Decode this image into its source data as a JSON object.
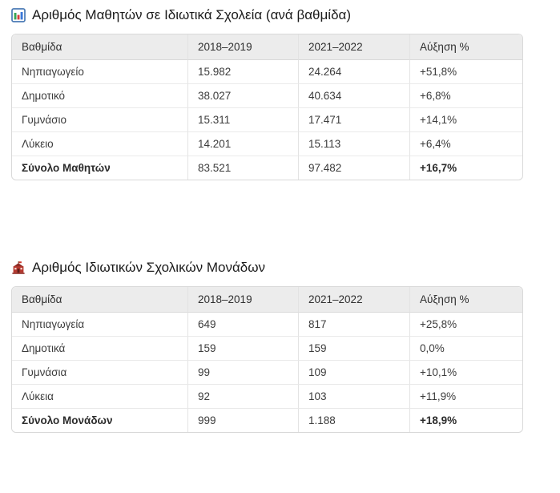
{
  "page": {
    "background": "#ffffff"
  },
  "colors": {
    "header_bg": "#ececec",
    "table_border": "#d9d9d9",
    "inner_border": "#e3e3e3",
    "body_text": "#3c3c3c",
    "title_text": "#1b1b1b"
  },
  "icons": [
    {
      "name": "bar-chart-icon",
      "colors": {
        "frame": "#4a7ab5",
        "bar1": "#3aa655",
        "bar2": "#d93c3c",
        "bar3": "#3b78d8"
      }
    },
    {
      "name": "school-icon",
      "colors": {
        "body": "#b5382f",
        "roof": "#8f2b24",
        "flag": "#d03a2f"
      }
    }
  ],
  "sections": [
    {
      "title": "Αριθμός Μαθητών σε Ιδιωτικά Σχολεία (ανά βαθμίδα)",
      "table": {
        "headers": [
          "Βαθμίδα",
          "2018–2019",
          "2021–2022",
          "Αύξηση %"
        ],
        "rows": [
          [
            "Νηπιαγωγείο",
            "15.982",
            "24.264",
            "+51,8%"
          ],
          [
            "Δημοτικό",
            "38.027",
            "40.634",
            "+6,8%"
          ],
          [
            "Γυμνάσιο",
            "15.311",
            "17.471",
            "+14,1%"
          ],
          [
            "Λύκειο",
            "14.201",
            "15.113",
            "+6,4%"
          ]
        ],
        "total_row": [
          "Σύνολο Μαθητών",
          "83.521",
          "97.482",
          "+16,7%"
        ]
      }
    },
    {
      "title": "Αριθμός Ιδιωτικών Σχολικών Μονάδων",
      "table": {
        "headers": [
          "Βαθμίδα",
          "2018–2019",
          "2021–2022",
          "Αύξηση %"
        ],
        "rows": [
          [
            "Νηπιαγωγεία",
            "649",
            "817",
            "+25,8%"
          ],
          [
            "Δημοτικά",
            "159",
            "159",
            "0,0%"
          ],
          [
            "Γυμνάσια",
            "99",
            "109",
            "+10,1%"
          ],
          [
            "Λύκεια",
            "92",
            "103",
            "+11,9%"
          ]
        ],
        "total_row": [
          "Σύνολο Μονάδων",
          "999",
          "1.188",
          "+18,9%"
        ]
      }
    }
  ]
}
